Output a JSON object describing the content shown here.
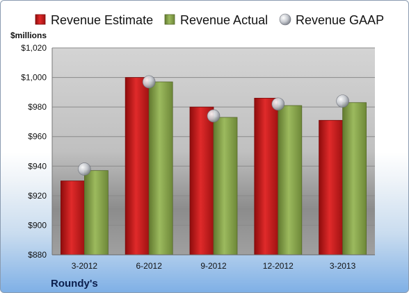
{
  "chart_data": {
    "type": "bar",
    "unit_label": "$millions",
    "brand": "Roundy's",
    "categories": [
      "3-2012",
      "6-2012",
      "9-2012",
      "12-2012",
      "3-2013"
    ],
    "series": [
      {
        "name": "Revenue Estimate",
        "kind": "bar",
        "color": "#d42020",
        "values": [
          930,
          1000,
          980,
          986,
          971
        ]
      },
      {
        "name": "Revenue Actual",
        "kind": "bar",
        "color": "#8fac52",
        "values": [
          937,
          997,
          973,
          981,
          983
        ]
      },
      {
        "name": "Revenue GAAP",
        "kind": "marker",
        "color": "#b8bcc4",
        "values": [
          938,
          997,
          974,
          982,
          984
        ]
      }
    ],
    "ylim": [
      880,
      1020
    ],
    "yticks": [
      880,
      900,
      920,
      940,
      960,
      980,
      1000,
      1020
    ],
    "ytick_labels": [
      "$880",
      "$900",
      "$920",
      "$940",
      "$960",
      "$980",
      "$1,000",
      "$1,020"
    ],
    "grid": true,
    "legend": "top"
  }
}
